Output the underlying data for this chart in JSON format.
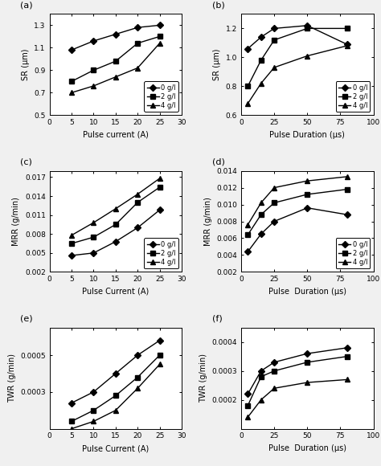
{
  "panel_a": {
    "label": "(a)",
    "xlabel": "Pulse current (A)",
    "ylabel": "SR (μm)",
    "xlim": [
      0,
      30
    ],
    "ylim": [
      0.5,
      1.4
    ],
    "yticks": [
      0.5,
      0.7,
      0.9,
      1.1,
      1.3
    ],
    "xticks": [
      0,
      5,
      10,
      15,
      20,
      25,
      30
    ],
    "x": [
      5,
      10,
      15,
      20,
      25
    ],
    "series": [
      {
        "label": "0 g/l",
        "y": [
          1.08,
          1.16,
          1.22,
          1.28,
          1.3
        ],
        "marker": "s"
      },
      {
        "label": "2 g/l",
        "y": [
          0.8,
          0.9,
          0.98,
          1.14,
          1.2
        ],
        "marker": "s"
      },
      {
        "label": "4 g/l",
        "y": [
          0.7,
          0.76,
          0.84,
          0.92,
          1.14
        ],
        "marker": "^"
      }
    ]
  },
  "panel_b": {
    "label": "(b)",
    "xlabel": "Pulse Duration (μs)",
    "ylabel": "SR (μm)",
    "xlim": [
      0,
      100
    ],
    "ylim": [
      0.6,
      1.3
    ],
    "yticks": [
      0.6,
      0.8,
      1.0,
      1.2
    ],
    "xticks": [
      0,
      25,
      50,
      75,
      100
    ],
    "x": [
      5,
      15,
      25,
      50,
      80
    ],
    "series": [
      {
        "label": "0 g/l",
        "y": [
          1.06,
          1.14,
          1.2,
          1.22,
          1.09
        ],
        "marker": "s"
      },
      {
        "label": "2 g/l",
        "y": [
          0.8,
          0.98,
          1.12,
          1.2,
          1.2
        ],
        "marker": "s"
      },
      {
        "label": "4 g/l",
        "y": [
          0.68,
          0.82,
          0.93,
          1.01,
          1.08
        ],
        "marker": "^"
      }
    ]
  },
  "panel_c": {
    "label": "(c)",
    "xlabel": "Pulse Current (A)",
    "ylabel": "MRR (g/min)",
    "xlim": [
      0,
      30
    ],
    "ylim": [
      0.002,
      0.018
    ],
    "yticks": [
      0.002,
      0.005,
      0.008,
      0.011,
      0.014,
      0.017
    ],
    "xticks": [
      0,
      5,
      10,
      15,
      20,
      25,
      30
    ],
    "x": [
      5,
      10,
      15,
      20,
      25
    ],
    "series": [
      {
        "label": "0 g/l",
        "y": [
          0.0046,
          0.005,
          0.0068,
          0.009,
          0.0118
        ],
        "marker": "s"
      },
      {
        "label": "2 g/l",
        "y": [
          0.0065,
          0.0075,
          0.0095,
          0.013,
          0.0154
        ],
        "marker": "s"
      },
      {
        "label": "4 g/l",
        "y": [
          0.0078,
          0.0098,
          0.012,
          0.0143,
          0.0168
        ],
        "marker": "^"
      }
    ]
  },
  "panel_d": {
    "label": "(d)",
    "xlabel": "Pulse  Duration (μs)",
    "ylabel": "MRR (g/min)",
    "xlim": [
      0,
      100
    ],
    "ylim": [
      0.002,
      0.014
    ],
    "yticks": [
      0.002,
      0.004,
      0.006,
      0.008,
      0.01,
      0.012,
      0.014
    ],
    "xticks": [
      0,
      25,
      50,
      75,
      100
    ],
    "x": [
      5,
      15,
      25,
      50,
      80
    ],
    "series": [
      {
        "label": "0 g/l",
        "y": [
          0.0044,
          0.0065,
          0.008,
          0.0096,
          0.0088
        ],
        "marker": "s"
      },
      {
        "label": "2 g/l",
        "y": [
          0.0064,
          0.0088,
          0.0102,
          0.0112,
          0.0118
        ],
        "marker": "s"
      },
      {
        "label": "4 g/l",
        "y": [
          0.0076,
          0.0102,
          0.012,
          0.0128,
          0.0133
        ],
        "marker": "^"
      }
    ]
  },
  "panel_e": {
    "label": "(e)",
    "xlabel": "Pulse Current (A)",
    "ylabel": "TWR (g/min)",
    "xlim": [
      0,
      30
    ],
    "ylim": [
      0.0001,
      0.00065
    ],
    "yticks": [
      0.0003,
      0.0005
    ],
    "xticks": [
      0,
      5,
      10,
      15,
      20,
      25,
      30
    ],
    "x": [
      5,
      10,
      15,
      20,
      25
    ],
    "series": [
      {
        "label": "0 g/l",
        "y": [
          0.00024,
          0.0003,
          0.0004,
          0.0005,
          0.00058
        ],
        "marker": "s"
      },
      {
        "label": "2 g/l",
        "y": [
          0.00014,
          0.0002,
          0.00028,
          0.00038,
          0.0005
        ],
        "marker": "s"
      },
      {
        "label": "4 g/l",
        "y": [
          0.0001,
          0.00014,
          0.0002,
          0.00032,
          0.00045
        ],
        "marker": "^"
      }
    ]
  },
  "panel_f": {
    "label": "(f)",
    "xlabel": "Pulse  Duration (μs)",
    "ylabel": "TWR (g/min)",
    "xlim": [
      0,
      100
    ],
    "ylim": [
      0.0001,
      0.00045
    ],
    "yticks": [
      0.0002,
      0.0003,
      0.0004
    ],
    "xticks": [
      0,
      25,
      50,
      75,
      100
    ],
    "x": [
      5,
      15,
      25,
      50,
      80
    ],
    "series": [
      {
        "label": "0 g/l",
        "y": [
          0.00022,
          0.0003,
          0.00033,
          0.00036,
          0.00038
        ],
        "marker": "s"
      },
      {
        "label": "2 g/l",
        "y": [
          0.00018,
          0.00028,
          0.0003,
          0.00033,
          0.00035
        ],
        "marker": "s"
      },
      {
        "label": "4 g/l",
        "y": [
          0.00014,
          0.0002,
          0.00024,
          0.00026,
          0.00027
        ],
        "marker": "^"
      }
    ]
  },
  "line_color": "#000000",
  "bg_color": "#f0f0f0",
  "legend_fontsize": 6.0,
  "axis_fontsize": 7,
  "tick_fontsize": 6.5,
  "label_fontsize": 8,
  "marker_size": 4
}
